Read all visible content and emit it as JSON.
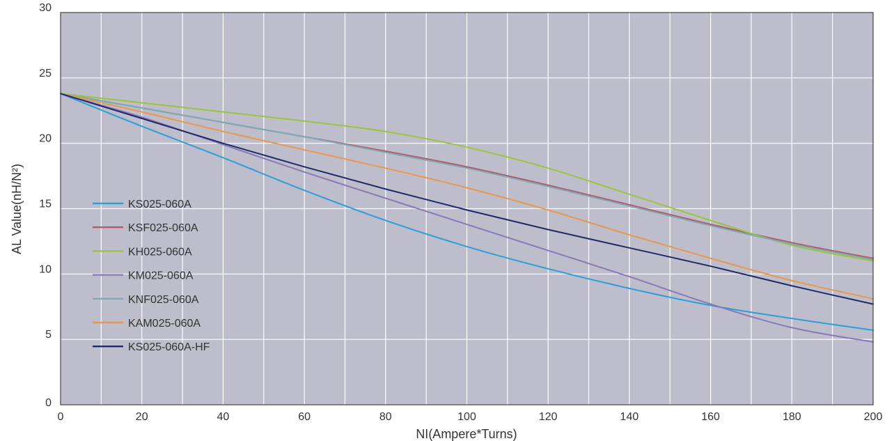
{
  "chart_data": {
    "type": "line",
    "title": "",
    "xlabel": "NI(Ampere*Turns)",
    "ylabel": "AL Value(nH/N²)",
    "xlim": [
      0,
      200
    ],
    "ylim": [
      0,
      30
    ],
    "xticks": [
      "0",
      "20",
      "40",
      "60",
      "80",
      "100",
      "120",
      "140",
      "160",
      "180",
      "200"
    ],
    "yticks": [
      "0",
      "5",
      "10",
      "15",
      "20",
      "25",
      "30"
    ],
    "grid": true,
    "legend_position": "center-left",
    "background_color": "#bdbdcb",
    "x": [
      0,
      20,
      40,
      60,
      80,
      100,
      120,
      140,
      160,
      180,
      200
    ],
    "series": [
      {
        "name": "KS025-060A",
        "color": "#2a9fd8",
        "values": [
          23.8,
          21.3,
          18.9,
          16.4,
          14.1,
          12.1,
          10.4,
          8.9,
          7.6,
          6.6,
          5.7
        ]
      },
      {
        "name": "KSF025-060A",
        "color": "#b45a6a",
        "values": [
          23.8,
          22.7,
          21.6,
          20.5,
          19.4,
          18.2,
          16.8,
          15.3,
          13.8,
          12.4,
          11.2
        ]
      },
      {
        "name": "KH025-060A",
        "color": "#9cc43a",
        "values": [
          23.8,
          23.1,
          22.4,
          21.7,
          20.9,
          19.7,
          18.1,
          16.1,
          14.1,
          12.2,
          11.0
        ]
      },
      {
        "name": "KM025-060A",
        "color": "#8a78b8",
        "values": [
          23.8,
          22.0,
          19.9,
          17.8,
          15.8,
          13.8,
          11.8,
          9.8,
          7.7,
          5.9,
          4.8
        ]
      },
      {
        "name": "KNF025-060A",
        "color": "#7aacb8",
        "values": [
          23.8,
          22.7,
          21.6,
          20.5,
          19.3,
          18.1,
          16.7,
          15.2,
          13.7,
          12.3,
          11.1
        ]
      },
      {
        "name": "KAM025-060A",
        "color": "#e8984a",
        "values": [
          23.8,
          22.4,
          20.9,
          19.5,
          18.1,
          16.6,
          14.9,
          13.0,
          11.2,
          9.5,
          8.1
        ]
      },
      {
        "name": "KS025-060A-HF",
        "color": "#1f2a6a",
        "values": [
          23.8,
          21.9,
          20.0,
          18.2,
          16.5,
          14.9,
          13.4,
          12.0,
          10.6,
          9.1,
          7.7
        ]
      }
    ]
  }
}
